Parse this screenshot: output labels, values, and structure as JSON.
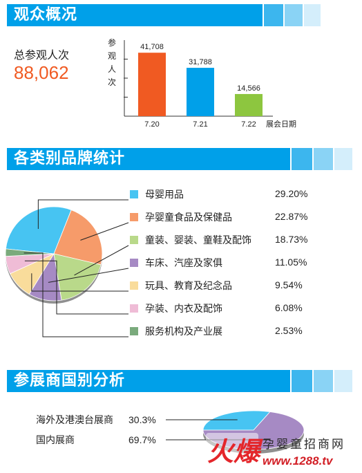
{
  "section1": {
    "title": "观众概况",
    "total_label": "总参观人次",
    "total_value": "88,062"
  },
  "section2": {
    "title": "各类别品牌统计"
  },
  "section3": {
    "title": "参展商国别分析"
  },
  "watermark": {
    "brand": "火爆",
    "site": "孕婴童招商网",
    "url": "www.1288.tv"
  },
  "colors": {
    "banner": "#00a0e9",
    "accent_orange": "#f05a22"
  },
  "chart_data": [
    {
      "type": "bar",
      "ylabel": "参观人次",
      "xlabel": "展会日期",
      "categories": [
        "7.20",
        "7.21",
        "7.22"
      ],
      "values": [
        41708,
        31788,
        14566
      ],
      "value_labels": [
        "41,708",
        "31,788",
        "14,566"
      ],
      "colors": [
        "#f05a22",
        "#00a0e9",
        "#8dc63f"
      ],
      "ylim": [
        0,
        50000
      ],
      "grid": false
    },
    {
      "type": "pie",
      "labels": [
        "母婴用品",
        "孕婴童食品及保健品",
        "童装、婴装、童鞋及配饰",
        "车床、汽座及家俱",
        "玩具、教育及纪念品",
        "孕装、内衣及配饰",
        "服务机构及产业展"
      ],
      "values": [
        29.2,
        22.87,
        18.73,
        11.05,
        9.54,
        6.08,
        2.53
      ],
      "value_labels": [
        "29.20%",
        "22.87%",
        "18.73%",
        "11.05%",
        "9.54%",
        "6.08%",
        "2.53%"
      ],
      "colors": [
        "#47c4f2",
        "#f69b6a",
        "#b9d98a",
        "#a68ac4",
        "#f9dc9b",
        "#efbcd6",
        "#7aaa7c"
      ],
      "legend": "right"
    },
    {
      "type": "pie",
      "labels": [
        "海外及港澳台展商",
        "国内展商"
      ],
      "values": [
        30.3,
        69.7
      ],
      "value_labels": [
        "30.3%",
        "69.7%"
      ],
      "colors": [
        "#47c4f2",
        "#a68ac4"
      ],
      "legend": "left"
    }
  ]
}
